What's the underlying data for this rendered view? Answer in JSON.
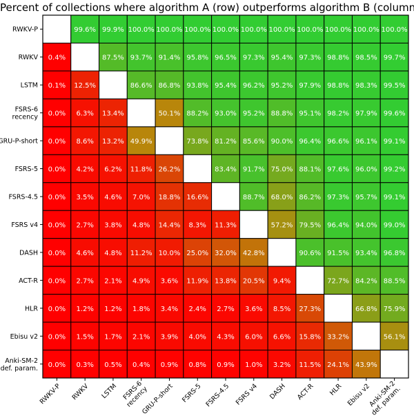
{
  "chart_data": {
    "type": "heatmap",
    "title": "Percent of collections where algorithm A (row) outperforms algorithm B (column)",
    "xlabel": "",
    "ylabel": "",
    "row_labels": [
      "RWKV-P",
      "RWKV",
      "LSTM",
      "FSRS-6\nrecency",
      "GRU-P-short",
      "FSRS-5",
      "FSRS-4.5",
      "FSRS v4",
      "DASH",
      "ACT-R",
      "HLR",
      "Ebisu v2",
      "Anki-SM-2\ndef. param."
    ],
    "column_labels": [
      "RWKV-P",
      "RWKV",
      "LSTM",
      "FSRS-6\nrecency",
      "GRU-P-short",
      "FSRS-5",
      "FSRS-4.5",
      "FSRS v4",
      "DASH",
      "ACT-R",
      "HLR",
      "Ebisu v2",
      "Anki-SM-2\ndef. param."
    ],
    "value_unit": "%",
    "diagonal": "empty",
    "colormap": {
      "low": "#ff0000",
      "mid": "#b8860b",
      "high": "#32cd32",
      "range": [
        0,
        100
      ]
    },
    "values": [
      [
        null,
        99.6,
        99.9,
        100.0,
        100.0,
        100.0,
        100.0,
        100.0,
        100.0,
        100.0,
        100.0,
        100.0,
        100.0
      ],
      [
        0.4,
        null,
        87.5,
        93.7,
        91.4,
        95.8,
        96.5,
        97.3,
        95.4,
        97.3,
        98.8,
        98.5,
        99.7
      ],
      [
        0.1,
        12.5,
        null,
        86.6,
        86.8,
        93.8,
        95.4,
        96.2,
        95.2,
        97.9,
        98.8,
        98.3,
        99.5
      ],
      [
        0.0,
        6.3,
        13.4,
        null,
        50.1,
        88.2,
        93.0,
        95.2,
        88.8,
        95.1,
        98.2,
        97.9,
        99.6
      ],
      [
        0.0,
        8.6,
        13.2,
        49.9,
        null,
        73.8,
        81.2,
        85.6,
        90.0,
        96.4,
        96.6,
        96.1,
        99.1
      ],
      [
        0.0,
        4.2,
        6.2,
        11.8,
        26.2,
        null,
        83.4,
        91.7,
        75.0,
        88.1,
        97.6,
        96.0,
        99.2
      ],
      [
        0.0,
        3.5,
        4.6,
        7.0,
        18.8,
        16.6,
        null,
        88.7,
        68.0,
        86.2,
        97.3,
        95.7,
        99.1
      ],
      [
        0.0,
        2.7,
        3.8,
        4.8,
        14.4,
        8.3,
        11.3,
        null,
        57.2,
        79.5,
        96.4,
        94.0,
        99.0
      ],
      [
        0.0,
        4.6,
        4.8,
        11.2,
        10.0,
        25.0,
        32.0,
        42.8,
        null,
        90.6,
        91.5,
        93.4,
        96.8
      ],
      [
        0.0,
        2.7,
        2.1,
        4.9,
        3.6,
        11.9,
        13.8,
        20.5,
        9.4,
        null,
        72.7,
        84.2,
        88.5
      ],
      [
        0.0,
        1.2,
        1.2,
        1.8,
        3.4,
        2.4,
        2.7,
        3.6,
        8.5,
        27.3,
        null,
        66.8,
        75.9
      ],
      [
        0.0,
        1.5,
        1.7,
        2.1,
        3.9,
        4.0,
        4.3,
        6.0,
        6.6,
        15.8,
        33.2,
        null,
        56.1
      ],
      [
        0.0,
        0.3,
        0.5,
        0.4,
        0.9,
        0.8,
        0.9,
        1.0,
        3.2,
        11.5,
        24.1,
        43.9,
        null
      ]
    ]
  }
}
